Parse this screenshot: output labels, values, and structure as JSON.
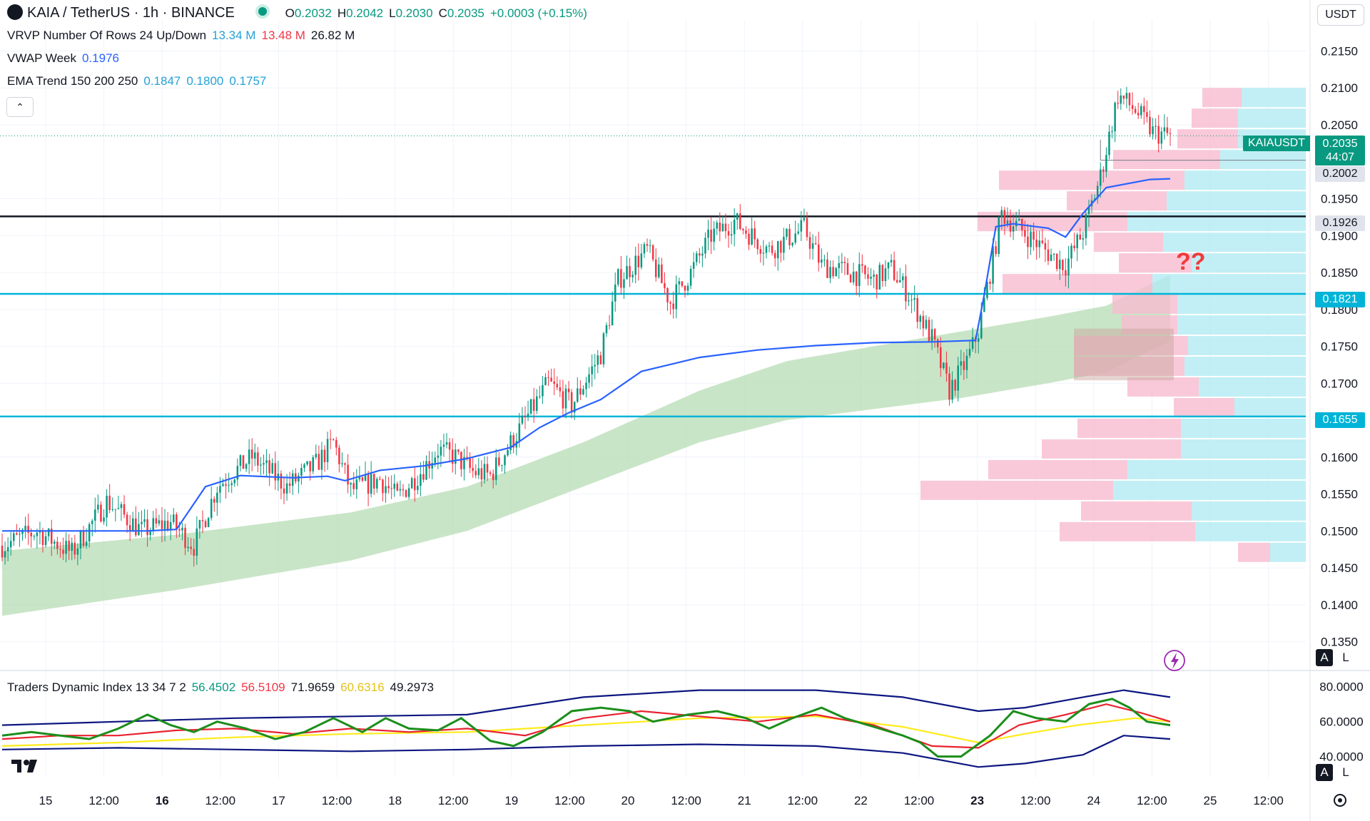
{
  "header": {
    "symbol": "KAIA / TetherUS · 1h · BINANCE",
    "ohlc": {
      "o_label": "O",
      "o": "0.2032",
      "h_label": "H",
      "h": "0.2042",
      "l_label": "L",
      "l": "0.2030",
      "c_label": "C",
      "c": "0.2035",
      "change": "+0.0003 (+0.15%)"
    },
    "unit_button": "USDT"
  },
  "indicators": {
    "vrvp": {
      "label": "VRVP Number Of Rows 24 Up/Down",
      "up": "13.34 M",
      "down": "13.48 M",
      "total": "26.82 M"
    },
    "vwap": {
      "label": "VWAP Week",
      "value": "0.1976"
    },
    "ema": {
      "label": "EMA Trend 150 200 250",
      "v150": "0.1847",
      "v200": "0.1800",
      "v250": "0.1757"
    },
    "tdi": {
      "label": "Traders Dynamic Index 13 34 7 2",
      "v1": "56.4502",
      "v2": "56.5109",
      "v3": "71.9659",
      "v4": "60.6316",
      "v5": "49.2973"
    }
  },
  "annotation_text": "??",
  "price_axis": {
    "ticks": [
      "0.2150",
      "0.2100",
      "0.2050",
      "0.1950",
      "0.1900",
      "0.1850",
      "0.1800",
      "0.1750",
      "0.1700",
      "0.1600",
      "0.1550",
      "0.1500",
      "0.1450",
      "0.1400",
      "0.1350"
    ],
    "tags": {
      "symbol": "KAIAUSDT",
      "last": "0.2035",
      "countdown": "44:07",
      "low_line": "0.2002",
      "black_line": "0.1926",
      "cyan_upper": "0.1821",
      "cyan_lower": "0.1655"
    },
    "mode_a": "A",
    "mode_l": "L"
  },
  "tdi_axis": {
    "ticks": [
      "80.0000",
      "60.0000",
      "40.0000"
    ]
  },
  "time_axis": {
    "ticks": [
      "15",
      "12:00",
      "16",
      "12:00",
      "17",
      "12:00",
      "18",
      "12:00",
      "19",
      "12:00",
      "20",
      "12:00",
      "21",
      "12:00",
      "22",
      "12:00",
      "23",
      "12:00",
      "24",
      "12:00",
      "25",
      "12:00"
    ]
  },
  "colors": {
    "up": "#089981",
    "down": "#f23645",
    "vwap": "#2962ff",
    "ema_fill": "#b7dcb4",
    "level_black": "#131722",
    "level_cyan": "#00b4d8",
    "vrvp_up": "#b2ebf2",
    "vrvp_down": "#f8bbd0",
    "tdi_green": "#1b8e1b",
    "tdi_red": "#e8222f",
    "tdi_yellow": "#ffeb1a",
    "tdi_band": "#0d1680"
  },
  "chart_data": {
    "type": "candlestick",
    "title": "KAIA / TetherUS · 1h · BINANCE",
    "y_range": [
      0.1338,
      0.2192
    ],
    "x_labels": [
      "15",
      "12:00",
      "16",
      "12:00",
      "17",
      "12:00",
      "18",
      "12:00",
      "19",
      "12:00",
      "20",
      "12:00",
      "21",
      "12:00",
      "22",
      "12:00",
      "23",
      "12:00",
      "24",
      "12:00",
      "25",
      "12:00"
    ],
    "levels": [
      0.1926,
      0.1821,
      0.1655
    ],
    "last_price": 0.2035,
    "session_low_line": 0.2002,
    "price_path": [
      [
        0,
        0.148
      ],
      [
        12,
        0.15
      ],
      [
        24,
        0.147
      ],
      [
        36,
        0.154
      ],
      [
        48,
        0.15
      ],
      [
        58,
        0.1512
      ],
      [
        66,
        0.148
      ],
      [
        74,
        0.156
      ],
      [
        86,
        0.16
      ],
      [
        98,
        0.156
      ],
      [
        108,
        0.159
      ],
      [
        114,
        0.162
      ],
      [
        120,
        0.1555
      ],
      [
        130,
        0.157
      ],
      [
        136,
        0.1545
      ],
      [
        144,
        0.158
      ],
      [
        150,
        0.161
      ],
      [
        156,
        0.16
      ],
      [
        162,
        0.158
      ],
      [
        168,
        0.1575
      ],
      [
        180,
        0.165
      ],
      [
        188,
        0.17
      ],
      [
        196,
        0.167
      ],
      [
        206,
        0.174
      ],
      [
        212,
        0.184
      ],
      [
        222,
        0.188
      ],
      [
        230,
        0.181
      ],
      [
        237,
        0.185
      ],
      [
        244,
        0.19
      ],
      [
        252,
        0.192
      ],
      [
        264,
        0.188
      ],
      [
        276,
        0.191
      ],
      [
        282,
        0.186
      ],
      [
        292,
        0.185
      ],
      [
        300,
        0.184
      ],
      [
        306,
        0.1855
      ],
      [
        312,
        0.182
      ],
      [
        320,
        0.176
      ],
      [
        326,
        0.169
      ],
      [
        332,
        0.173
      ],
      [
        336,
        0.177
      ],
      [
        340,
        0.185
      ],
      [
        344,
        0.193
      ],
      [
        350,
        0.191
      ],
      [
        356,
        0.189
      ],
      [
        362,
        0.187
      ],
      [
        366,
        0.186
      ],
      [
        372,
        0.1905
      ],
      [
        378,
        0.198
      ],
      [
        384,
        0.209
      ],
      [
        390,
        0.207
      ],
      [
        396,
        0.204
      ],
      [
        402,
        0.2035
      ]
    ],
    "vwap_week": [
      [
        0,
        0.15
      ],
      [
        30,
        0.15
      ],
      [
        50,
        0.15
      ],
      [
        60,
        0.1502
      ],
      [
        70,
        0.156
      ],
      [
        82,
        0.1575
      ],
      [
        100,
        0.1572
      ],
      [
        112,
        0.1574
      ],
      [
        118,
        0.1568
      ],
      [
        130,
        0.1582
      ],
      [
        145,
        0.1588
      ],
      [
        160,
        0.1598
      ],
      [
        175,
        0.1613
      ],
      [
        185,
        0.164
      ],
      [
        195,
        0.166
      ],
      [
        206,
        0.1678
      ],
      [
        220,
        0.1716
      ],
      [
        240,
        0.1735
      ],
      [
        260,
        0.1745
      ],
      [
        280,
        0.1751
      ],
      [
        300,
        0.1755
      ],
      [
        320,
        0.1756
      ],
      [
        335,
        0.1758
      ],
      [
        338,
        0.182
      ],
      [
        342,
        0.1912
      ],
      [
        348,
        0.1916
      ],
      [
        360,
        0.191
      ],
      [
        366,
        0.1898
      ],
      [
        372,
        0.193
      ],
      [
        380,
        0.1965
      ],
      [
        395,
        0.1976
      ],
      [
        402,
        0.1977
      ]
    ],
    "ema_ribbon": {
      "top": [
        [
          0,
          0.1473
        ],
        [
          60,
          0.1495
        ],
        [
          120,
          0.1525
        ],
        [
          160,
          0.156
        ],
        [
          200,
          0.162
        ],
        [
          240,
          0.169
        ],
        [
          270,
          0.173
        ],
        [
          300,
          0.175
        ],
        [
          330,
          0.177
        ],
        [
          360,
          0.179
        ],
        [
          380,
          0.1805
        ],
        [
          402,
          0.1847
        ]
      ],
      "bottom": [
        [
          0,
          0.1385
        ],
        [
          60,
          0.142
        ],
        [
          120,
          0.146
        ],
        [
          160,
          0.15
        ],
        [
          200,
          0.156
        ],
        [
          240,
          0.162
        ],
        [
          270,
          0.165
        ],
        [
          300,
          0.1665
        ],
        [
          330,
          0.168
        ],
        [
          360,
          0.17
        ],
        [
          380,
          0.1715
        ],
        [
          402,
          0.1757
        ]
      ]
    },
    "vrvp_rows": [
      {
        "top": 0.21,
        "up_len": 90,
        "down_len": 55
      },
      {
        "top": 0.2072,
        "up_len": 95,
        "down_len": 65
      },
      {
        "top": 0.2044,
        "up_len": 95,
        "down_len": 85
      },
      {
        "top": 0.2016,
        "up_len": 120,
        "down_len": 150
      },
      {
        "top": 0.1988,
        "up_len": 170,
        "down_len": 260
      },
      {
        "top": 0.196,
        "up_len": 195,
        "down_len": 140
      },
      {
        "top": 0.1932,
        "up_len": 250,
        "down_len": 210
      },
      {
        "top": 0.1904,
        "up_len": 200,
        "down_len": 97
      },
      {
        "top": 0.1876,
        "up_len": 160,
        "down_len": 102
      },
      {
        "top": 0.1848,
        "up_len": 215,
        "down_len": 210
      },
      {
        "top": 0.182,
        "up_len": 180,
        "down_len": 91
      },
      {
        "top": 0.1792,
        "up_len": 180,
        "down_len": 78
      },
      {
        "top": 0.1764,
        "up_len": 165,
        "down_len": 160
      },
      {
        "top": 0.1736,
        "up_len": 170,
        "down_len": 155
      },
      {
        "top": 0.1708,
        "up_len": 150,
        "down_len": 100
      },
      {
        "top": 0.168,
        "up_len": 100,
        "down_len": 85
      },
      {
        "top": 0.1652,
        "up_len": 175,
        "down_len": 145
      },
      {
        "top": 0.1624,
        "up_len": 175,
        "down_len": 195
      },
      {
        "top": 0.1596,
        "up_len": 250,
        "down_len": 195
      },
      {
        "top": 0.1568,
        "up_len": 270,
        "down_len": 270
      },
      {
        "top": 0.154,
        "up_len": 160,
        "down_len": 155
      },
      {
        "top": 0.1512,
        "up_len": 155,
        "down_len": 190
      },
      {
        "top": 0.1484,
        "up_len": 50,
        "down_len": 45
      }
    ],
    "tdi": {
      "y_range": [
        28,
        86
      ],
      "green": [
        [
          0,
          52
        ],
        [
          10,
          54
        ],
        [
          20,
          52
        ],
        [
          30,
          50
        ],
        [
          40,
          56
        ],
        [
          50,
          64
        ],
        [
          58,
          58
        ],
        [
          66,
          54
        ],
        [
          74,
          60
        ],
        [
          84,
          56
        ],
        [
          94,
          50
        ],
        [
          104,
          54
        ],
        [
          114,
          62
        ],
        [
          124,
          54
        ],
        [
          132,
          62
        ],
        [
          140,
          56
        ],
        [
          150,
          55
        ],
        [
          158,
          62
        ],
        [
          168,
          49
        ],
        [
          176,
          46
        ],
        [
          186,
          54
        ],
        [
          196,
          66
        ],
        [
          206,
          68
        ],
        [
          216,
          66
        ],
        [
          224,
          60
        ],
        [
          236,
          64
        ],
        [
          246,
          66
        ],
        [
          256,
          62
        ],
        [
          264,
          56
        ],
        [
          272,
          62
        ],
        [
          282,
          68
        ],
        [
          290,
          62
        ],
        [
          300,
          57
        ],
        [
          310,
          52
        ],
        [
          316,
          48
        ],
        [
          322,
          40
        ],
        [
          330,
          40
        ],
        [
          340,
          52
        ],
        [
          348,
          66
        ],
        [
          356,
          62
        ],
        [
          366,
          60
        ],
        [
          374,
          70
        ],
        [
          382,
          73
        ],
        [
          388,
          68
        ],
        [
          394,
          60
        ],
        [
          402,
          58
        ]
      ],
      "red": [
        [
          0,
          50
        ],
        [
          20,
          52
        ],
        [
          40,
          52
        ],
        [
          60,
          55
        ],
        [
          80,
          56
        ],
        [
          100,
          53
        ],
        [
          120,
          56
        ],
        [
          140,
          54
        ],
        [
          160,
          56
        ],
        [
          180,
          52
        ],
        [
          200,
          62
        ],
        [
          220,
          66
        ],
        [
          240,
          63
        ],
        [
          260,
          60
        ],
        [
          280,
          64
        ],
        [
          300,
          58
        ],
        [
          320,
          46
        ],
        [
          336,
          45
        ],
        [
          350,
          58
        ],
        [
          366,
          64
        ],
        [
          380,
          70
        ],
        [
          392,
          65
        ],
        [
          402,
          60
        ]
      ],
      "yellow": [
        [
          0,
          46
        ],
        [
          40,
          48
        ],
        [
          80,
          51
        ],
        [
          120,
          53
        ],
        [
          160,
          54
        ],
        [
          200,
          58
        ],
        [
          240,
          62
        ],
        [
          280,
          63
        ],
        [
          310,
          57
        ],
        [
          336,
          48
        ],
        [
          352,
          53
        ],
        [
          370,
          58
        ],
        [
          390,
          62
        ],
        [
          402,
          60
        ]
      ],
      "upper_band": [
        [
          0,
          58
        ],
        [
          40,
          60
        ],
        [
          80,
          62
        ],
        [
          120,
          63
        ],
        [
          160,
          64
        ],
        [
          200,
          74
        ],
        [
          240,
          78
        ],
        [
          280,
          78
        ],
        [
          310,
          74
        ],
        [
          336,
          66
        ],
        [
          352,
          68
        ],
        [
          372,
          74
        ],
        [
          386,
          78
        ],
        [
          402,
          74
        ]
      ],
      "lower_band": [
        [
          0,
          44
        ],
        [
          40,
          45
        ],
        [
          80,
          44
        ],
        [
          120,
          43
        ],
        [
          160,
          44
        ],
        [
          200,
          46
        ],
        [
          240,
          47
        ],
        [
          280,
          46
        ],
        [
          310,
          42
        ],
        [
          336,
          34
        ],
        [
          352,
          36
        ],
        [
          372,
          41
        ],
        [
          386,
          52
        ],
        [
          402,
          50
        ]
      ]
    }
  }
}
